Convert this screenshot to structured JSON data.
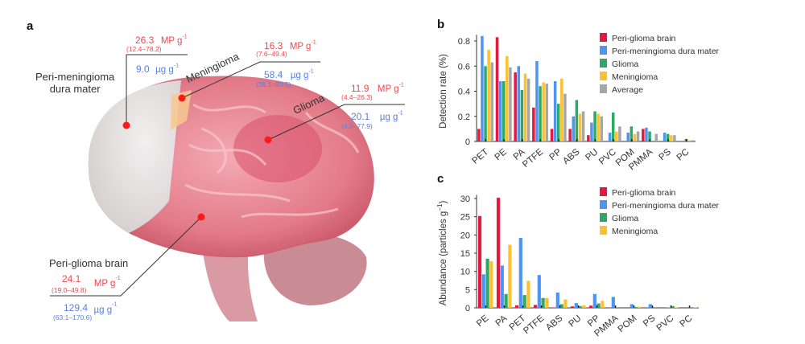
{
  "panels": {
    "a": "a",
    "b": "b",
    "c": "c"
  },
  "brain_annotations": {
    "dura": {
      "label_line1": "Peri-meningioma",
      "label_line2": "dura mater",
      "mp_value": "26.3",
      "mp_unit": "MP g",
      "mp_range": "(12.4–78.2)",
      "mass_value": "9.0",
      "mass_unit": "µg g"
    },
    "meningioma": {
      "label": "Meningioma",
      "mp_value": "16.3",
      "mp_unit": "MP g",
      "mp_range": "(7.6–49.4)",
      "mass_value": "58.4",
      "mass_unit": "µg g",
      "mass_range": "(26.1–83.5)"
    },
    "glioma": {
      "label": "Glioma",
      "mp_value": "11.9",
      "mp_unit": "MP g",
      "mp_range": "(4.4–26.3)",
      "mass_value": "20.1",
      "mass_unit": "µg g",
      "mass_range": "(4.9–77.9)"
    },
    "peri_glioma": {
      "label": "Peri-glioma brain",
      "mp_value": "24.1",
      "mp_unit": "MP g",
      "mp_range": "(19.0–49.8)",
      "mass_value": "129.4",
      "mass_unit": "µg g",
      "mass_range": "(63.1–170.6)"
    },
    "exponent": "-1"
  },
  "colors": {
    "peri_glioma": "#e8173f",
    "dura": "#4d94f5",
    "glioma": "#2ea866",
    "meningioma": "#fdc02f",
    "average": "#a6a6a6",
    "mp_text": "#f0474f",
    "mass_text": "#5a7fdc"
  },
  "chart_data": [
    {
      "type": "bar",
      "ylabel": "Detection rate (%)",
      "ylim": [
        0,
        0.85
      ],
      "yticks": [
        "0",
        "0.2",
        "0.4",
        "0.6",
        "0.8"
      ],
      "legend_position": "top-right",
      "categories": [
        "PET",
        "PE",
        "PA",
        "PTFE",
        "PP",
        "ABS",
        "PU",
        "PVC",
        "POM",
        "PMMA",
        "PS",
        "PC"
      ],
      "series": [
        {
          "name": "Peri-glioma brain",
          "color": "#e8173f",
          "values": [
            0.1,
            0.83,
            0.55,
            0.27,
            0.1,
            0.1,
            0.05,
            0,
            0,
            0.1,
            0,
            0
          ]
        },
        {
          "name": "Peri-meningioma dura mater",
          "color": "#4d94f5",
          "values": [
            0.84,
            0.48,
            0.6,
            0.64,
            0.48,
            0.2,
            0.15,
            0.07,
            0.07,
            0.11,
            0.07,
            0
          ]
        },
        {
          "name": "Glioma",
          "color": "#2ea866",
          "values": [
            0.6,
            0.48,
            0.41,
            0.44,
            0.3,
            0.33,
            0.24,
            0.23,
            0.12,
            0.08,
            0.06,
            0.02
          ]
        },
        {
          "name": "Meningioma",
          "color": "#fdc02f",
          "values": [
            0.73,
            0.68,
            0.54,
            0.47,
            0.5,
            0.22,
            0.22,
            0.08,
            0.06,
            0,
            0.05,
            0.01
          ]
        },
        {
          "name": "Average",
          "color": "#a6a6a6",
          "values": [
            0.63,
            0.59,
            0.5,
            0.46,
            0.38,
            0.24,
            0.2,
            0.12,
            0.08,
            0.06,
            0.05,
            0.01
          ]
        }
      ]
    },
    {
      "type": "bar",
      "ylabel": "Abundance (particles g",
      "ylabel_exp": "−1",
      "ylabel_end": ")",
      "ylim": [
        0,
        31
      ],
      "yticks": [
        "0",
        "5",
        "10",
        "15",
        "20",
        "25",
        "30"
      ],
      "legend_position": "top-right",
      "categories": [
        "PE",
        "PA",
        "PET",
        "PTFE",
        "ABS",
        "PU",
        "PP",
        "PMMA",
        "POM",
        "PS",
        "PVC",
        "PC"
      ],
      "series": [
        {
          "name": "Peri-glioma brain",
          "color": "#e8173f",
          "values": [
            25.2,
            30.2,
            0.7,
            0.8,
            0.1,
            0.4,
            0.6,
            0.1,
            0,
            0,
            0,
            0
          ]
        },
        {
          "name": "Peri-meningioma dura mater",
          "color": "#4d94f5",
          "values": [
            9.2,
            11.6,
            19.2,
            9.0,
            4.2,
            1.3,
            3.8,
            3.0,
            1.0,
            1.0,
            0.1,
            0
          ]
        },
        {
          "name": "Glioma",
          "color": "#2ea866",
          "values": [
            13.5,
            3.8,
            3.5,
            2.7,
            1.0,
            0.5,
            1.2,
            0,
            0.2,
            0,
            0.5,
            0
          ]
        },
        {
          "name": "Meningioma",
          "color": "#fdc02f",
          "values": [
            12.8,
            17.3,
            7.4,
            2.7,
            2.3,
            0.7,
            1.9,
            0,
            0.3,
            0,
            0.1,
            0.1
          ]
        }
      ]
    }
  ]
}
